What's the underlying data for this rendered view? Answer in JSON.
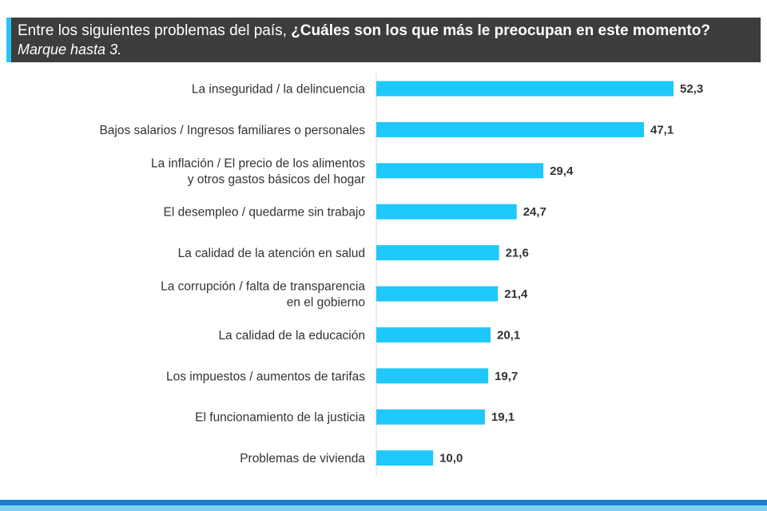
{
  "header": {
    "question_plain": "Entre los siguientes problemas del país, ",
    "question_bold": "¿Cuáles son los que más le preocupan en este momento?",
    "instruction": "Marque hasta 3."
  },
  "colors": {
    "bar": "#1ec8fb",
    "header_bg": "#3d3d3d",
    "accent": "#29c3f6"
  },
  "chart_data": {
    "type": "bar",
    "orientation": "horizontal",
    "categories": [
      [
        "La inseguridad / la delincuencia"
      ],
      [
        "Bajos salarios / Ingresos familiares o personales"
      ],
      [
        "La inflación / El precio de los alimentos",
        "y otros gastos básicos del hogar"
      ],
      [
        "El desempleo / quedarme sin trabajo"
      ],
      [
        "La calidad de la atención en salud"
      ],
      [
        "La corrupción / falta de transparencia",
        "en el gobierno"
      ],
      [
        "La calidad de la educación"
      ],
      [
        "Los impuestos / aumentos de tarifas"
      ],
      [
        "El funcionamiento de la justicia"
      ],
      [
        "Problemas de vivienda"
      ]
    ],
    "values": [
      52.3,
      47.1,
      29.4,
      24.7,
      21.6,
      21.4,
      20.1,
      19.7,
      19.1,
      10.0
    ],
    "value_labels": [
      "52,3",
      "47,1",
      "29,4",
      "24,7",
      "21,6",
      "21,4",
      "20,1",
      "19,7",
      "19,1",
      "10,0"
    ],
    "xlim": [
      0,
      55
    ],
    "grid": false,
    "legend": "none"
  }
}
